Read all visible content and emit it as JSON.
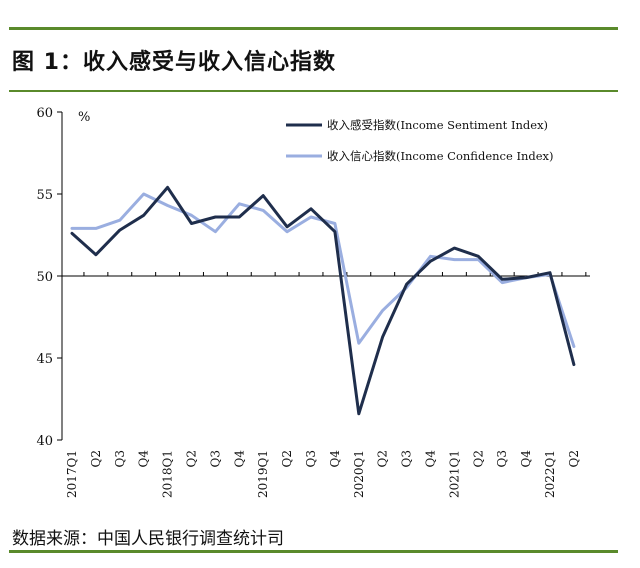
{
  "figure": {
    "title": "图 1：收入感受与收入信心指数",
    "source": "数据来源：中国人民银行调查统计司"
  },
  "colors": {
    "series1": "#1f2e4c",
    "series2": "#9aaee0",
    "rule": "#5a8a2b"
  },
  "chart_data": {
    "type": "line",
    "title": "",
    "xlabel": "",
    "ylabel": "%",
    "ylim": [
      40,
      60
    ],
    "yticks": [
      40,
      45,
      50,
      55,
      60
    ],
    "x_axis_crosses_at": 50,
    "grid": false,
    "legend_position": "top-right",
    "categories": [
      "2017Q1",
      "Q2",
      "Q3",
      "Q4",
      "2018Q1",
      "Q2",
      "Q3",
      "Q4",
      "2019Q1",
      "Q2",
      "Q3",
      "Q4",
      "2020Q1",
      "Q2",
      "Q3",
      "Q4",
      "2021Q1",
      "Q2",
      "Q3",
      "Q4",
      "2022Q1",
      "Q2"
    ],
    "series": [
      {
        "name": "收入感受指数(Income Sentiment Index)",
        "values": [
          52.6,
          51.3,
          52.8,
          53.7,
          55.4,
          53.2,
          53.6,
          53.6,
          54.9,
          53.0,
          54.1,
          52.7,
          41.6,
          46.3,
          49.5,
          50.9,
          51.7,
          51.2,
          49.8,
          49.9,
          50.2,
          44.6
        ]
      },
      {
        "name": "收入信心指数(Income Confidence Index)",
        "values": [
          52.9,
          52.9,
          53.4,
          55.0,
          54.3,
          53.7,
          52.7,
          54.4,
          54.0,
          52.7,
          53.6,
          53.2,
          45.9,
          47.9,
          49.3,
          51.2,
          51.0,
          51.0,
          49.6,
          49.9,
          50.1,
          45.7
        ]
      }
    ]
  }
}
